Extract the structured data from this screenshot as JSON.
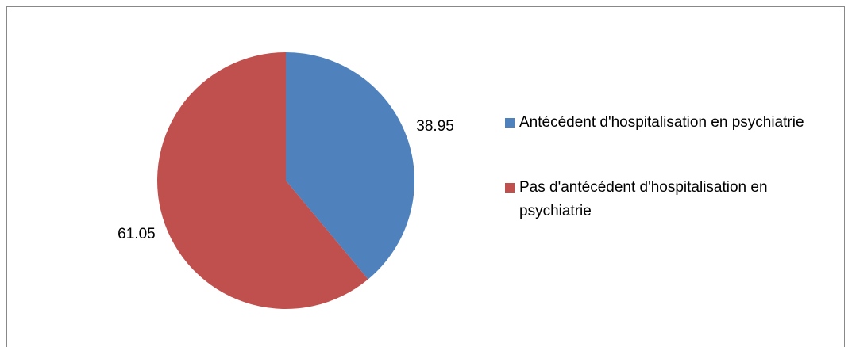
{
  "chart_data": {
    "type": "pie",
    "categories": [
      "Antécédent d'hospitalisation en psychiatrie",
      "Pas d'antécédent d'hospitalisation en psychiatrie"
    ],
    "values": [
      38.95,
      61.05
    ],
    "colors": [
      "#4f81bd",
      "#c0504d"
    ],
    "legend": "right"
  }
}
